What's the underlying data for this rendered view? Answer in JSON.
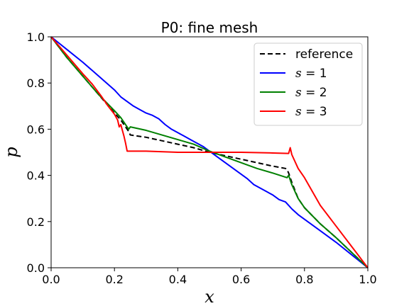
{
  "chart_data": {
    "type": "line",
    "title": "P0: fine mesh",
    "xlabel": "x",
    "ylabel": "p",
    "xlim": [
      0.0,
      1.0
    ],
    "ylim": [
      0.0,
      1.0
    ],
    "xticks": [
      "0.0",
      "0.2",
      "0.4",
      "0.6",
      "0.8",
      "1.0"
    ],
    "yticks": [
      "0.0",
      "0.2",
      "0.4",
      "0.6",
      "0.8",
      "1.0"
    ],
    "grid": false,
    "legend_position": "top-right",
    "series": [
      {
        "name": "reference",
        "legend_var": "",
        "legend_value": "",
        "color": "#000000",
        "dash": "dashed",
        "x": [
          0.0,
          0.05,
          0.1,
          0.15,
          0.2,
          0.22,
          0.23,
          0.24,
          0.245,
          0.25,
          0.3,
          0.35,
          0.4,
          0.45,
          0.5,
          0.55,
          0.6,
          0.65,
          0.7,
          0.74,
          0.745,
          0.75,
          0.76,
          0.78,
          0.8,
          0.85,
          0.9,
          0.95,
          1.0
        ],
        "y": [
          1.0,
          0.91,
          0.83,
          0.75,
          0.67,
          0.64,
          0.62,
          0.6,
          0.59,
          0.575,
          0.565,
          0.55,
          0.535,
          0.52,
          0.5,
          0.485,
          0.47,
          0.455,
          0.44,
          0.43,
          0.425,
          0.41,
          0.37,
          0.3,
          0.26,
          0.19,
          0.13,
          0.065,
          0.0
        ]
      },
      {
        "name": "",
        "legend_var": "s",
        "legend_value": "1",
        "color": "#0000ff",
        "dash": "solid",
        "x": [
          0.0,
          0.05,
          0.1,
          0.15,
          0.2,
          0.22,
          0.24,
          0.26,
          0.28,
          0.3,
          0.32,
          0.34,
          0.36,
          0.38,
          0.4,
          0.42,
          0.44,
          0.46,
          0.48,
          0.5,
          0.52,
          0.54,
          0.56,
          0.58,
          0.6,
          0.62,
          0.64,
          0.66,
          0.68,
          0.7,
          0.72,
          0.74,
          0.75,
          0.76,
          0.78,
          0.8,
          0.85,
          0.9,
          0.95,
          1.0
        ],
        "y": [
          1.0,
          0.945,
          0.89,
          0.83,
          0.77,
          0.74,
          0.72,
          0.7,
          0.685,
          0.67,
          0.66,
          0.645,
          0.62,
          0.6,
          0.585,
          0.57,
          0.555,
          0.54,
          0.525,
          0.505,
          0.485,
          0.465,
          0.445,
          0.425,
          0.405,
          0.385,
          0.36,
          0.345,
          0.33,
          0.315,
          0.295,
          0.285,
          0.27,
          0.255,
          0.23,
          0.21,
          0.16,
          0.11,
          0.055,
          0.0
        ]
      },
      {
        "name": "",
        "legend_var": "s",
        "legend_value": "2",
        "color": "#008000",
        "dash": "solid",
        "x": [
          0.0,
          0.05,
          0.1,
          0.15,
          0.2,
          0.22,
          0.23,
          0.24,
          0.245,
          0.25,
          0.3,
          0.35,
          0.4,
          0.45,
          0.5,
          0.55,
          0.6,
          0.65,
          0.7,
          0.745,
          0.75,
          0.76,
          0.78,
          0.8,
          0.85,
          0.9,
          0.95,
          1.0
        ],
        "y": [
          1.0,
          0.91,
          0.83,
          0.75,
          0.68,
          0.65,
          0.63,
          0.61,
          0.6,
          0.61,
          0.595,
          0.575,
          0.555,
          0.535,
          0.505,
          0.48,
          0.455,
          0.43,
          0.41,
          0.39,
          0.4,
          0.36,
          0.3,
          0.26,
          0.19,
          0.13,
          0.065,
          0.0
        ]
      },
      {
        "name": "",
        "legend_var": "s",
        "legend_value": "3",
        "color": "#ff0000",
        "dash": "solid",
        "x": [
          0.0,
          0.05,
          0.1,
          0.13,
          0.16,
          0.18,
          0.2,
          0.21,
          0.215,
          0.22,
          0.23,
          0.235,
          0.24,
          0.3,
          0.4,
          0.5,
          0.6,
          0.7,
          0.75,
          0.755,
          0.76,
          0.78,
          0.8,
          0.85,
          0.9,
          0.95,
          1.0
        ],
        "y": [
          1.0,
          0.92,
          0.84,
          0.795,
          0.74,
          0.7,
          0.665,
          0.64,
          0.61,
          0.62,
          0.57,
          0.54,
          0.505,
          0.505,
          0.5,
          0.5,
          0.5,
          0.497,
          0.495,
          0.52,
          0.49,
          0.43,
          0.39,
          0.27,
          0.18,
          0.09,
          0.0
        ]
      }
    ]
  }
}
